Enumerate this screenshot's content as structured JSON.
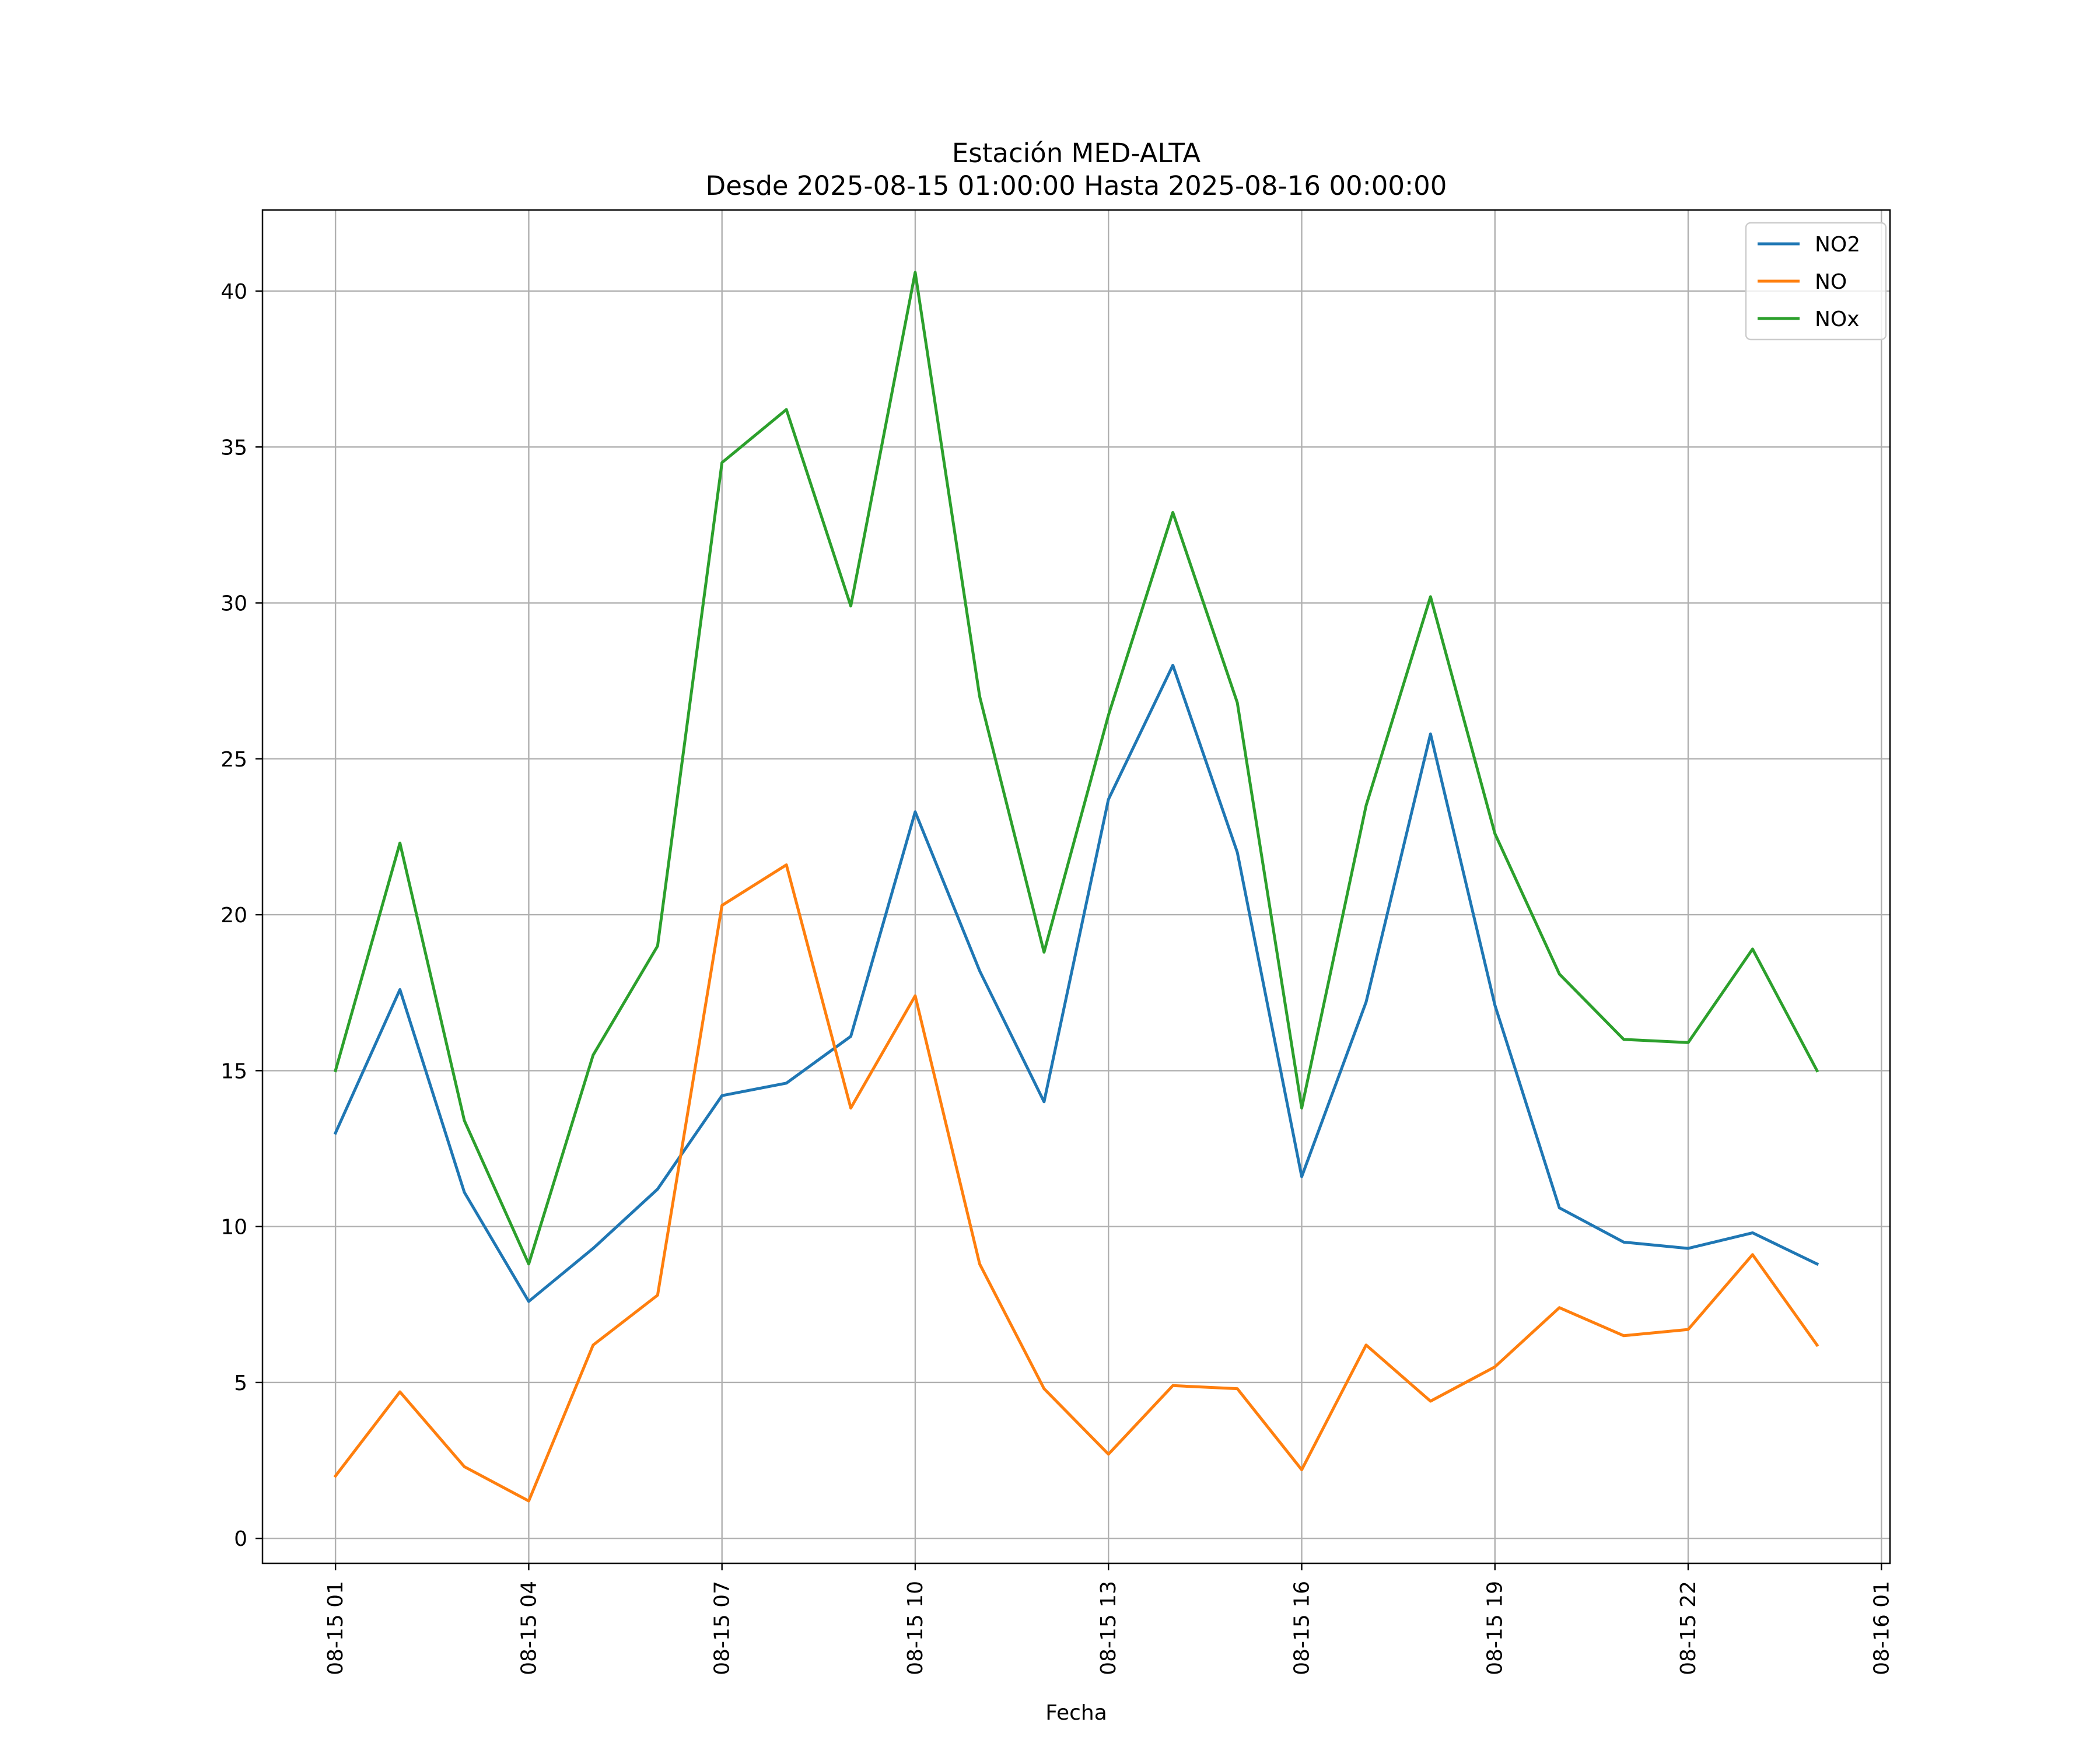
{
  "chart_data": {
    "type": "line",
    "title_line1": "Estación MED-ALTA",
    "title_line2": "Desde 2025-08-15 01:00:00 Hasta 2025-08-16 00:00:00",
    "xlabel": "Fecha",
    "ylabel": "",
    "x": [
      "2025-08-15 01:00",
      "2025-08-15 02:00",
      "2025-08-15 03:00",
      "2025-08-15 04:00",
      "2025-08-15 05:00",
      "2025-08-15 06:00",
      "2025-08-15 07:00",
      "2025-08-15 08:00",
      "2025-08-15 09:00",
      "2025-08-15 10:00",
      "2025-08-15 11:00",
      "2025-08-15 12:00",
      "2025-08-15 13:00",
      "2025-08-15 14:00",
      "2025-08-15 15:00",
      "2025-08-15 16:00",
      "2025-08-15 17:00",
      "2025-08-15 18:00",
      "2025-08-15 19:00",
      "2025-08-15 20:00",
      "2025-08-15 21:00",
      "2025-08-15 22:00",
      "2025-08-15 23:00",
      "2025-08-16 00:00"
    ],
    "xticks": [
      "08-15 01",
      "08-15 04",
      "08-15 07",
      "08-15 10",
      "08-15 13",
      "08-15 16",
      "08-15 19",
      "08-15 22",
      "08-16 01"
    ],
    "xlim": [
      "2025-08-14 23:52",
      "2025-08-16 01:08"
    ],
    "ylim": [
      -0.8,
      42.6
    ],
    "yticks": [
      0,
      5,
      10,
      15,
      20,
      25,
      30,
      35,
      40
    ],
    "grid": true,
    "legend_position": "upper right",
    "series": [
      {
        "name": "NO2",
        "color": "#1f77b4",
        "values": [
          13.0,
          17.6,
          11.1,
          7.6,
          9.3,
          11.2,
          14.2,
          14.6,
          16.1,
          23.3,
          18.2,
          14.0,
          23.7,
          28.0,
          22.0,
          11.6,
          17.2,
          25.8,
          17.1,
          10.6,
          9.5,
          9.3,
          9.8,
          8.8
        ]
      },
      {
        "name": "NO",
        "color": "#ff7f0e",
        "values": [
          2.0,
          4.7,
          2.3,
          1.2,
          6.2,
          7.8,
          20.3,
          21.6,
          13.8,
          17.4,
          8.8,
          4.8,
          2.7,
          4.9,
          4.8,
          2.2,
          6.2,
          4.4,
          5.5,
          7.4,
          6.5,
          6.7,
          9.1,
          6.2
        ]
      },
      {
        "name": "NOx",
        "color": "#2ca02c",
        "values": [
          15.0,
          22.3,
          13.4,
          8.8,
          15.5,
          19.0,
          34.5,
          36.2,
          29.9,
          40.6,
          27.0,
          18.8,
          26.4,
          32.9,
          26.8,
          13.8,
          23.5,
          30.2,
          22.6,
          18.1,
          16.0,
          15.9,
          18.9,
          15.0
        ]
      }
    ]
  }
}
